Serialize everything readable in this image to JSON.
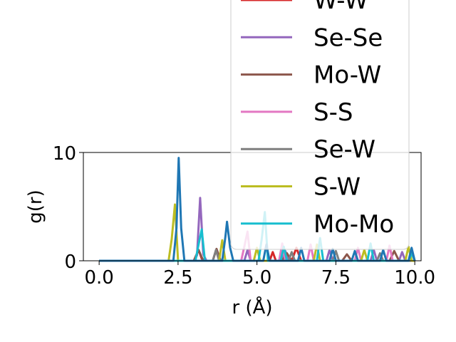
{
  "chart_data": {
    "type": "line",
    "xlabel": "r (Å)",
    "ylabel": "g(r)",
    "xlim": [
      -0.5,
      10.2
    ],
    "ylim": [
      0,
      10
    ],
    "xticks": [
      "0.0",
      "2.5",
      "5.0",
      "7.5",
      "10.0"
    ],
    "xtick_values": [
      0,
      2.5,
      5,
      7.5,
      10
    ],
    "yticks": [
      "0",
      "10"
    ],
    "ytick_values": [
      0,
      10
    ],
    "grid": false,
    "legend_position": "top-right",
    "series": [
      {
        "name": "W-W",
        "color": "#d62728",
        "x": [
          0,
          3.0,
          3.15,
          3.25,
          3.35,
          5.4,
          5.5,
          5.6,
          6.1,
          6.25,
          6.4,
          10.0
        ],
        "y": [
          0,
          0,
          1.0,
          0.2,
          0,
          0,
          0.8,
          0,
          0,
          1.2,
          0,
          0
        ]
      },
      {
        "name": "Se-Se",
        "color": "#9467bd",
        "x": [
          0,
          3.0,
          3.1,
          3.2,
          3.3,
          3.4,
          4.6,
          4.7,
          4.8,
          5.8,
          5.9,
          6.0,
          7.2,
          7.3,
          7.4,
          8.6,
          8.7,
          8.8,
          9.5,
          9.6,
          9.7,
          10.0
        ],
        "y": [
          0,
          0,
          0.5,
          5.8,
          0.6,
          0,
          0,
          1.0,
          0,
          0,
          0.9,
          0,
          0,
          1.0,
          0,
          0,
          1.0,
          0,
          0,
          0.8,
          0,
          0
        ]
      },
      {
        "name": "Mo-W",
        "color": "#8c564b",
        "x": [
          0,
          3.0,
          3.15,
          3.3,
          3.6,
          3.72,
          3.85,
          5.8,
          5.95,
          6.1,
          7.7,
          7.85,
          8.0,
          9.2,
          9.35,
          9.5,
          10.0
        ],
        "y": [
          0,
          0,
          1.0,
          0,
          0,
          1.1,
          0,
          0,
          0.7,
          0,
          0,
          0.6,
          0,
          0,
          0.9,
          0,
          0
        ]
      },
      {
        "name": "S-S",
        "color": "#e377c2",
        "x": [
          0,
          4.5,
          4.6,
          4.7,
          4.8,
          5.7,
          5.8,
          5.9,
          6.6,
          6.7,
          6.8,
          8.1,
          8.2,
          8.3,
          9.1,
          9.2,
          9.3,
          10.0
        ],
        "y": [
          0,
          0,
          1.3,
          2.7,
          0,
          0,
          1.6,
          0,
          0,
          1.5,
          0,
          0,
          1.2,
          0,
          0,
          1.4,
          0,
          0
        ]
      },
      {
        "name": "Se-W",
        "color": "#7f7f7f",
        "x": [
          0,
          3.6,
          3.7,
          3.8,
          6.0,
          6.1,
          6.2,
          7.4,
          7.5,
          7.6,
          8.8,
          8.9,
          9.0,
          10.0
        ],
        "y": [
          0,
          0,
          1.0,
          0,
          0,
          0.8,
          0,
          0,
          0.9,
          0,
          0,
          0.7,
          0,
          0
        ]
      },
      {
        "name": "S-W",
        "color": "#bcbd22",
        "x": [
          0,
          2.2,
          2.3,
          2.4,
          2.5,
          3.8,
          3.9,
          4.0,
          4.9,
          5.0,
          5.1,
          6.8,
          6.9,
          7.0,
          8.3,
          8.4,
          8.5,
          9.7,
          9.8,
          9.9,
          10.0
        ],
        "y": [
          0,
          0,
          2.0,
          5.2,
          0,
          0,
          1.9,
          0,
          0,
          1.2,
          0,
          0,
          1.5,
          0,
          0,
          1.0,
          0,
          0,
          1.3,
          0,
          0
        ]
      },
      {
        "name": "Mo-Mo",
        "color": "#17becf",
        "x": [
          0,
          3.05,
          3.15,
          3.25,
          3.35,
          5.05,
          5.15,
          5.25,
          5.35,
          5.75,
          5.85,
          5.95,
          6.9,
          7.0,
          7.1,
          8.5,
          8.6,
          8.7,
          9.8,
          9.9,
          10.0
        ],
        "y": [
          0,
          0,
          1.5,
          2.9,
          0,
          0,
          2.0,
          4.5,
          0,
          0,
          1.3,
          0,
          0,
          2.1,
          0,
          0,
          1.6,
          0,
          0,
          0.7,
          0
        ]
      },
      {
        "name": "",
        "color": "#1f77b4",
        "x": [
          0,
          2.35,
          2.45,
          2.52,
          2.6,
          2.7,
          3.9,
          4.0,
          4.05,
          4.15,
          4.25,
          5.2,
          5.3,
          5.4,
          6.3,
          6.4,
          6.5,
          7.3,
          7.4,
          7.5,
          8.0,
          8.1,
          8.2,
          8.9,
          9.0,
          9.1,
          9.8,
          9.9,
          10.0
        ],
        "y": [
          0,
          0,
          3.0,
          9.5,
          3.0,
          0,
          0,
          2.2,
          3.6,
          1.2,
          0,
          0,
          1.5,
          0,
          0,
          1.2,
          0,
          0,
          1.1,
          0,
          0,
          0.9,
          0,
          0,
          1.0,
          0,
          0,
          1.2,
          0
        ]
      }
    ]
  }
}
